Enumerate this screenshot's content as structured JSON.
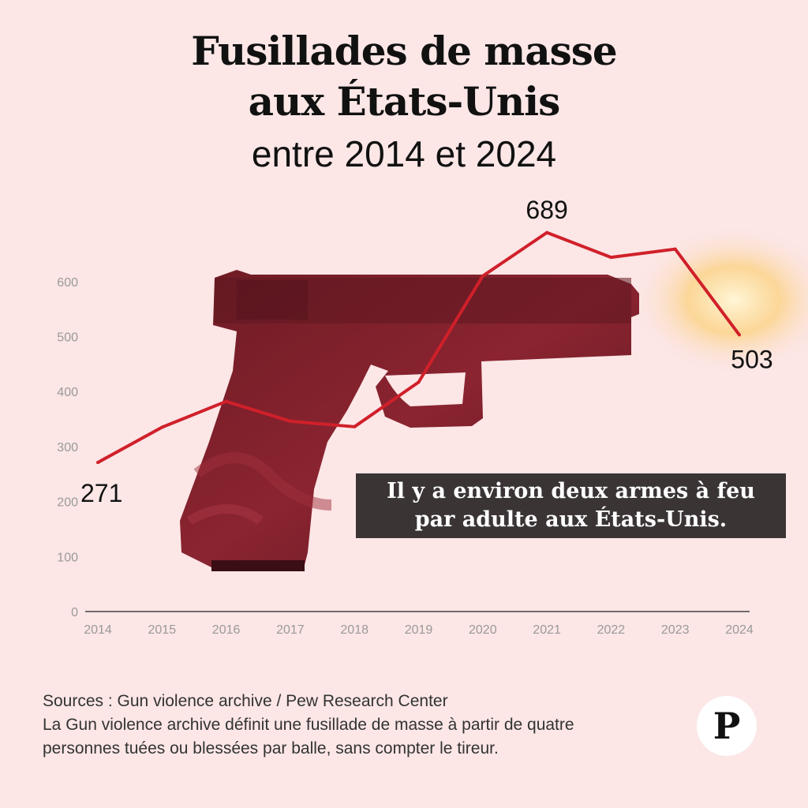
{
  "header": {
    "title_line_1": "Fusillades de masse",
    "title_line_2": "aux États-Unis",
    "subtitle": "entre 2014 et 2024"
  },
  "chart_data": {
    "type": "line",
    "title": "Fusillades de masse aux États-Unis",
    "subtitle": "entre 2014 et 2024",
    "x": [
      "2014",
      "2015",
      "2016",
      "2017",
      "2018",
      "2019",
      "2020",
      "2021",
      "2022",
      "2023",
      "2024"
    ],
    "series": [
      {
        "values": [
          271,
          335,
          382,
          346,
          336,
          417,
          610,
          689,
          644,
          659,
          503
        ]
      }
    ],
    "yticks": [
      0,
      100,
      200,
      300,
      400,
      500,
      600
    ],
    "ylim": [
      0,
      600
    ],
    "data_labels": [
      {
        "x": "2014",
        "text": "271"
      },
      {
        "x": "2021",
        "text": "689"
      },
      {
        "x": "2024",
        "text": "503"
      }
    ],
    "grid": false,
    "line_color": "#d0202a",
    "tick_color": "#9a9a9a"
  },
  "note": {
    "line_1": "Il y a environ deux armes à feu",
    "line_2": "par adulte aux États-Unis."
  },
  "source": {
    "line_1": "Sources : Gun violence archive / Pew Research Center",
    "line_2": "La Gun violence archive définit une fusillade de masse à partir de quatre",
    "line_3": "personnes tuées ou blessées par balle, sans compter le tireur."
  },
  "logo": {
    "letter": "P"
  },
  "colors": {
    "background": "#fce6e6",
    "line": "#d0202a",
    "note_bg": "#3a3435",
    "gun": "#7a1f27"
  },
  "illustration": {
    "icon": "pistol-icon"
  }
}
